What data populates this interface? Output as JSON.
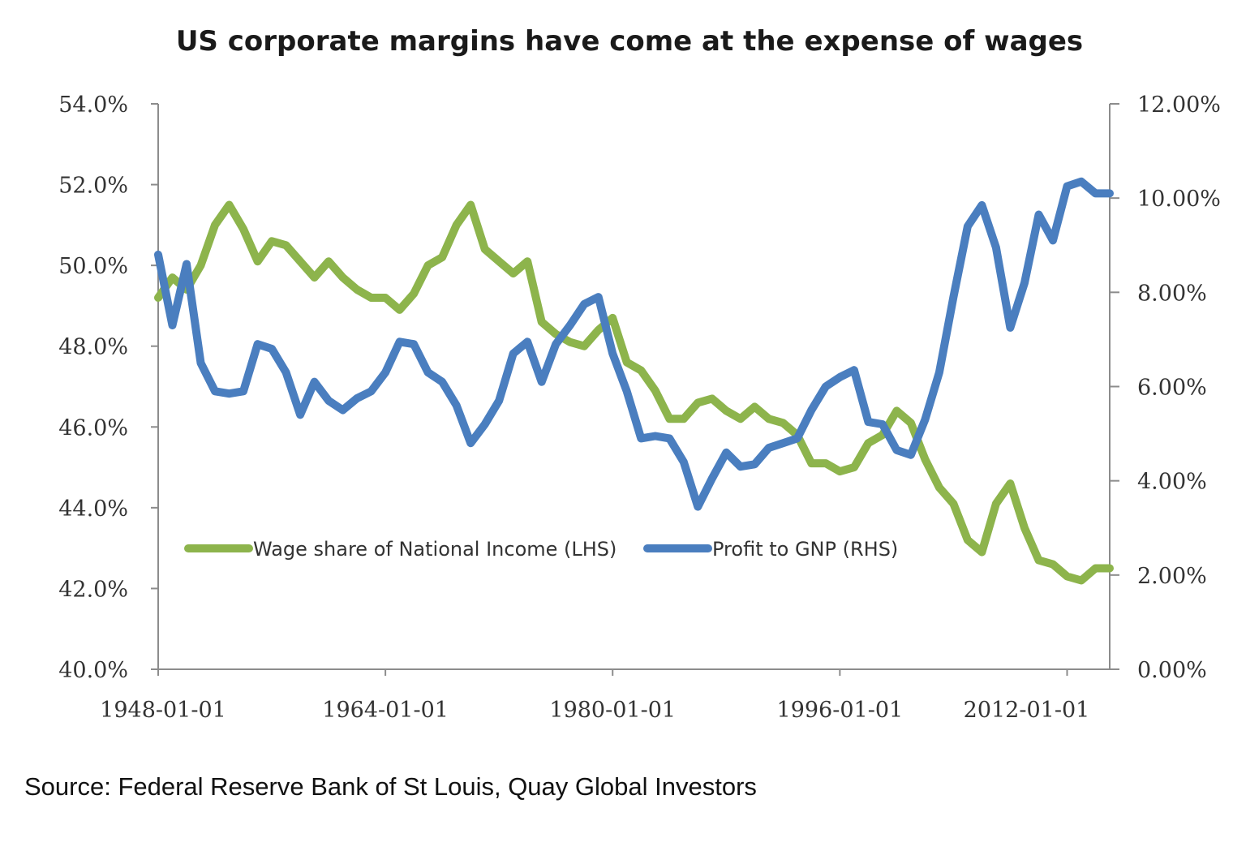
{
  "chart_data": {
    "type": "line",
    "title": "US corporate margins have come at the expense of wages",
    "x_tick_labels": [
      "1948-01-01",
      "1964-01-01",
      "1980-01-01",
      "1996-01-01",
      "2012-01-01"
    ],
    "x_range": [
      1948,
      2015
    ],
    "left_axis": {
      "range": [
        40,
        54
      ],
      "tick_labels": [
        "40.0%",
        "42.0%",
        "44.0%",
        "46.0%",
        "48.0%",
        "50.0%",
        "52.0%",
        "54.0%"
      ]
    },
    "right_axis": {
      "range": [
        0,
        12
      ],
      "tick_labels": [
        "0.00%",
        "2.00%",
        "4.00%",
        "6.00%",
        "8.00%",
        "10.00%",
        "12.00%"
      ]
    },
    "legend_position": "bottom-left inside plot",
    "grid": false,
    "series": [
      {
        "name": "Wage share of National Income (LHS)",
        "axis": "left",
        "color": "#8db44c",
        "x": [
          1948,
          1949,
          1950,
          1951,
          1952,
          1953,
          1954,
          1955,
          1956,
          1957,
          1958,
          1959,
          1960,
          1961,
          1962,
          1963,
          1964,
          1965,
          1966,
          1967,
          1968,
          1969,
          1970,
          1971,
          1972,
          1973,
          1974,
          1975,
          1976,
          1977,
          1978,
          1979,
          1980,
          1981,
          1982,
          1983,
          1984,
          1985,
          1986,
          1987,
          1988,
          1989,
          1990,
          1991,
          1992,
          1993,
          1994,
          1995,
          1996,
          1997,
          1998,
          1999,
          2000,
          2001,
          2002,
          2003,
          2004,
          2005,
          2006,
          2007,
          2008,
          2009,
          2010,
          2011,
          2012,
          2013,
          2014,
          2015
        ],
        "values": [
          49.2,
          49.7,
          49.4,
          50.0,
          51.0,
          51.5,
          50.9,
          50.1,
          50.6,
          50.5,
          50.1,
          49.7,
          50.1,
          49.7,
          49.4,
          49.2,
          49.2,
          48.9,
          49.3,
          50.0,
          50.2,
          51.0,
          51.5,
          50.4,
          50.1,
          49.8,
          50.1,
          48.6,
          48.3,
          48.1,
          48.0,
          48.4,
          48.7,
          47.6,
          47.4,
          46.9,
          46.2,
          46.2,
          46.6,
          46.7,
          46.4,
          46.2,
          46.5,
          46.2,
          46.1,
          45.8,
          45.1,
          45.1,
          44.9,
          45.0,
          45.6,
          45.8,
          46.4,
          46.1,
          45.2,
          44.5,
          44.1,
          43.2,
          42.9,
          44.1,
          44.6,
          43.5,
          42.7,
          42.6,
          42.3,
          42.2,
          42.5,
          42.5
        ]
      },
      {
        "name": "Profit to GNP (RHS)",
        "axis": "right",
        "color": "#4a7ebf",
        "x": [
          1948,
          1949,
          1950,
          1951,
          1952,
          1953,
          1954,
          1955,
          1956,
          1957,
          1958,
          1959,
          1960,
          1961,
          1962,
          1963,
          1964,
          1965,
          1966,
          1967,
          1968,
          1969,
          1970,
          1971,
          1972,
          1973,
          1974,
          1975,
          1976,
          1977,
          1978,
          1979,
          1980,
          1981,
          1982,
          1983,
          1984,
          1985,
          1986,
          1987,
          1988,
          1989,
          1990,
          1991,
          1992,
          1993,
          1994,
          1995,
          1996,
          1997,
          1998,
          1999,
          2000,
          2001,
          2002,
          2003,
          2004,
          2005,
          2006,
          2007,
          2008,
          2009,
          2010,
          2011,
          2012,
          2013,
          2014,
          2015
        ],
        "values": [
          8.8,
          7.3,
          8.6,
          6.5,
          5.9,
          5.85,
          5.9,
          6.9,
          6.8,
          6.3,
          5.4,
          6.1,
          5.7,
          5.5,
          5.75,
          5.9,
          6.3,
          6.95,
          6.9,
          6.3,
          6.1,
          5.6,
          4.8,
          5.2,
          5.7,
          6.7,
          6.95,
          6.1,
          6.9,
          7.3,
          7.75,
          7.9,
          6.7,
          5.9,
          4.9,
          4.95,
          4.9,
          4.4,
          3.45,
          4.05,
          4.6,
          4.3,
          4.35,
          4.7,
          4.8,
          4.9,
          5.5,
          6.0,
          6.2,
          6.35,
          5.25,
          5.2,
          4.65,
          4.55,
          5.3,
          6.3,
          7.9,
          9.4,
          9.85,
          8.95,
          7.25,
          8.2,
          9.65,
          9.1,
          10.25,
          10.35,
          10.1,
          10.1
        ]
      }
    ]
  },
  "footer": {
    "source": "Source: Federal Reserve Bank of St Louis, Quay Global Investors"
  }
}
